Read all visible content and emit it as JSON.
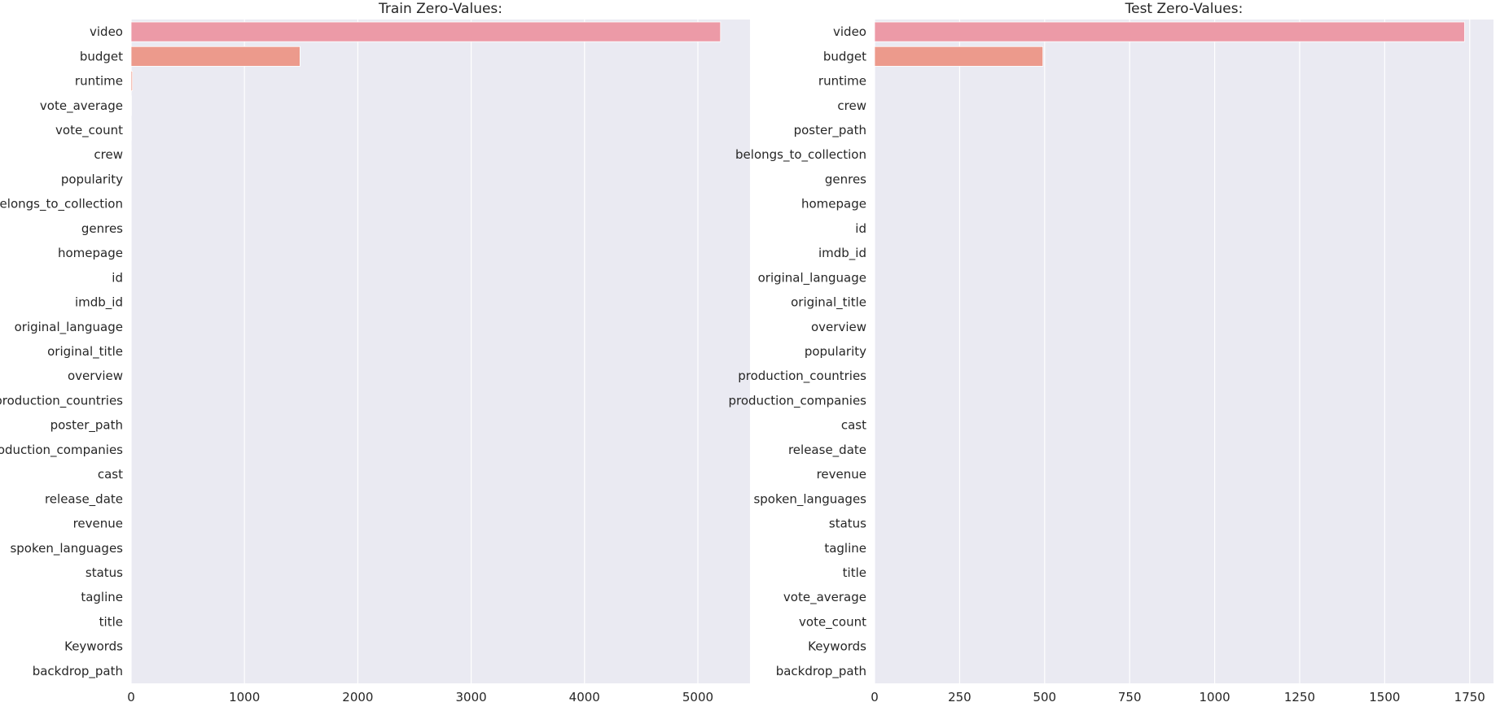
{
  "chart_data": [
    {
      "type": "bar",
      "orientation": "horizontal",
      "title": "Train Zero-Values:",
      "xlabel": "",
      "ylabel": "",
      "xlim": [
        0,
        5460
      ],
      "xticks": [
        0,
        1000,
        2000,
        3000,
        4000,
        5000
      ],
      "grid": true,
      "categories": [
        "video",
        "budget",
        "runtime",
        "vote_average",
        "vote_count",
        "crew",
        "popularity",
        "belongs_to_collection",
        "genres",
        "homepage",
        "id",
        "imdb_id",
        "original_language",
        "original_title",
        "overview",
        "production_countries",
        "poster_path",
        "production_companies",
        "cast",
        "release_date",
        "revenue",
        "spoken_languages",
        "status",
        "tagline",
        "title",
        "Keywords",
        "backdrop_path"
      ],
      "values": [
        5200,
        1490,
        12,
        3,
        2,
        1,
        0,
        0,
        0,
        0,
        0,
        0,
        0,
        0,
        0,
        0,
        0,
        0,
        0,
        0,
        0,
        0,
        0,
        0,
        0,
        0,
        0
      ],
      "colors": [
        "#ec9aa7",
        "#ec9a8c",
        "#ec9a8c"
      ]
    },
    {
      "type": "bar",
      "orientation": "horizontal",
      "title": "Test Zero-Values:",
      "xlabel": "",
      "ylabel": "",
      "xlim": [
        0,
        1820
      ],
      "xticks": [
        0,
        250,
        500,
        750,
        1000,
        1250,
        1500,
        1750
      ],
      "grid": true,
      "categories": [
        "video",
        "budget",
        "runtime",
        "crew",
        "poster_path",
        "belongs_to_collection",
        "genres",
        "homepage",
        "id",
        "imdb_id",
        "original_language",
        "original_title",
        "overview",
        "popularity",
        "production_countries",
        "production_companies",
        "cast",
        "release_date",
        "revenue",
        "spoken_languages",
        "status",
        "tagline",
        "title",
        "vote_average",
        "vote_count",
        "Keywords",
        "backdrop_path"
      ],
      "values": [
        1735,
        495,
        0,
        0,
        0,
        0,
        0,
        0,
        0,
        0,
        0,
        0,
        0,
        0,
        0,
        0,
        0,
        0,
        0,
        0,
        0,
        0,
        0,
        0,
        0,
        0,
        0
      ],
      "colors": [
        "#ec9aa7",
        "#ec9a8c",
        "#ec9a8c"
      ]
    }
  ],
  "style": {
    "plot_background": "#eaeaf2",
    "grid_color": "#ffffff",
    "text_color": "#262626"
  }
}
